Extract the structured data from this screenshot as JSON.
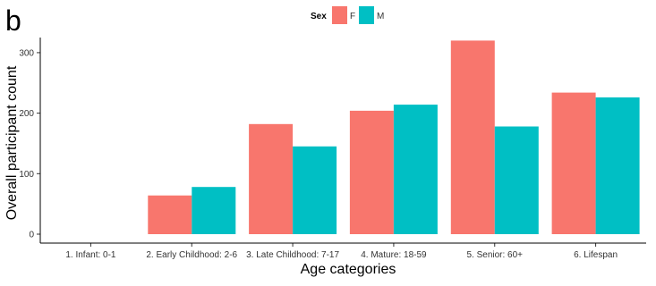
{
  "panel_label": "b",
  "colors": {
    "F": "#F8766D",
    "M": "#00BFC4"
  },
  "chart_data": {
    "type": "bar",
    "title": "",
    "xlabel": "Age categories",
    "ylabel": "Overall participant count",
    "ylim": [
      0,
      325
    ],
    "yticks": [
      0,
      100,
      200,
      300
    ],
    "grid": false,
    "legend": {
      "title": "Sex",
      "position": "top"
    },
    "categories": [
      "1. Infant: 0-1",
      "2. Early Childhood: 2-6",
      "3. Late Childhood: 7-17",
      "4. Mature: 18-59",
      "5. Senior: 60+",
      "6. Lifespan"
    ],
    "series": [
      {
        "name": "F",
        "values": [
          0,
          64,
          182,
          204,
          320,
          234
        ]
      },
      {
        "name": "M",
        "values": [
          0,
          78,
          145,
          214,
          178,
          226
        ]
      }
    ]
  }
}
